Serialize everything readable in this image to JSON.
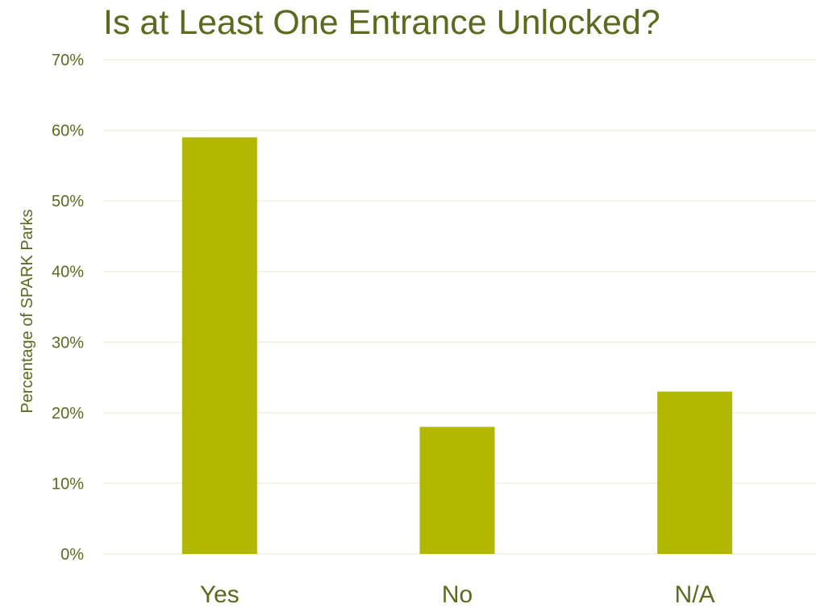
{
  "colors": {
    "bar": "#b2b800",
    "text": "#5a6a1e",
    "grid": "#f1efdc"
  },
  "chart_data": {
    "type": "bar",
    "title": "Is at Least One Entrance Unlocked?",
    "xlabel": "",
    "ylabel": "Percentage of SPARK Parks",
    "categories": [
      "Yes",
      "No",
      "N/A"
    ],
    "values": [
      59,
      18,
      23
    ],
    "ylim": [
      0,
      70
    ],
    "yticks": [
      0,
      10,
      20,
      30,
      40,
      50,
      60,
      70
    ],
    "ytick_labels": [
      "0%",
      "10%",
      "20%",
      "30%",
      "40%",
      "50%",
      "60%",
      "70%"
    ],
    "grid": true,
    "legend": "none"
  }
}
